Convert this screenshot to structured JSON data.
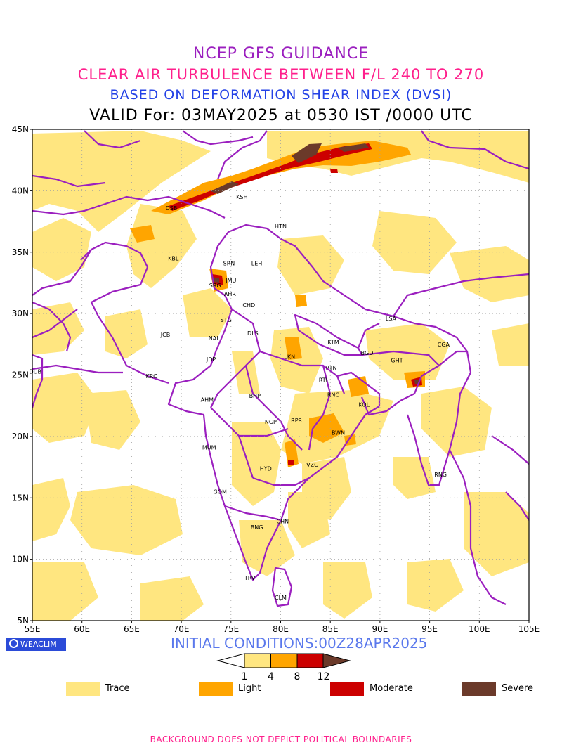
{
  "titles": {
    "line1": "NCEP GFS GUIDANCE",
    "line2": "CLEAR AIR TURBULENCE BETWEEN F/L 240 TO 270",
    "line3": "BASED ON DEFORMATION SHEAR INDEX (DVSI)",
    "line4": "VALID For: 03MAY2025 at 0530 IST /0000 UTC"
  },
  "axes": {
    "lon_labels": [
      "55E",
      "60E",
      "65E",
      "70E",
      "75E",
      "80E",
      "85E",
      "90E",
      "95E",
      "100E",
      "105E"
    ],
    "lat_labels": [
      "5N",
      "10N",
      "15N",
      "20N",
      "25N",
      "30N",
      "35N",
      "40N",
      "45N"
    ],
    "lon_range": [
      55,
      105
    ],
    "lat_range": [
      5,
      45
    ]
  },
  "cities": [
    {
      "code": "DSB",
      "lon": 69.0,
      "lat": 38.6
    },
    {
      "code": "KSH",
      "lon": 76.1,
      "lat": 39.5
    },
    {
      "code": "HTN",
      "lon": 80.0,
      "lat": 37.1
    },
    {
      "code": "KBL",
      "lon": 69.2,
      "lat": 34.5
    },
    {
      "code": "SRN",
      "lon": 74.8,
      "lat": 34.1
    },
    {
      "code": "LEH",
      "lon": 77.6,
      "lat": 34.1
    },
    {
      "code": "SRG",
      "lon": 73.4,
      "lat": 32.3
    },
    {
      "code": "JMU",
      "lon": 75.0,
      "lat": 32.7
    },
    {
      "code": "AHR",
      "lon": 74.9,
      "lat": 31.6
    },
    {
      "code": "CHD",
      "lon": 76.8,
      "lat": 30.7
    },
    {
      "code": "STG",
      "lon": 74.5,
      "lat": 29.5
    },
    {
      "code": "LSA",
      "lon": 91.1,
      "lat": 29.6
    },
    {
      "code": "JCB",
      "lon": 68.4,
      "lat": 28.3
    },
    {
      "code": "NAL",
      "lon": 73.3,
      "lat": 28.0
    },
    {
      "code": "DLS",
      "lon": 77.2,
      "lat": 28.4
    },
    {
      "code": "KTM",
      "lon": 85.3,
      "lat": 27.7
    },
    {
      "code": "CGA",
      "lon": 96.4,
      "lat": 27.5
    },
    {
      "code": "BGD",
      "lon": 88.7,
      "lat": 26.8
    },
    {
      "code": "GHT",
      "lon": 91.7,
      "lat": 26.2
    },
    {
      "code": "JDP",
      "lon": 73.0,
      "lat": 26.3
    },
    {
      "code": "LKN",
      "lon": 80.9,
      "lat": 26.5
    },
    {
      "code": "PTN",
      "lon": 85.1,
      "lat": 25.6
    },
    {
      "code": "DUB",
      "lon": 55.3,
      "lat": 25.3
    },
    {
      "code": "RTH",
      "lon": 84.4,
      "lat": 24.6
    },
    {
      "code": "KRC",
      "lon": 67.0,
      "lat": 24.9
    },
    {
      "code": "BHP",
      "lon": 77.4,
      "lat": 23.3
    },
    {
      "code": "RNC",
      "lon": 85.3,
      "lat": 23.4
    },
    {
      "code": "AHM",
      "lon": 72.6,
      "lat": 23.0
    },
    {
      "code": "KOL",
      "lon": 88.4,
      "lat": 22.6
    },
    {
      "code": "NGP",
      "lon": 79.0,
      "lat": 21.2
    },
    {
      "code": "RPR",
      "lon": 81.6,
      "lat": 21.3
    },
    {
      "code": "BWN",
      "lon": 85.8,
      "lat": 20.3
    },
    {
      "code": "MUM",
      "lon": 72.8,
      "lat": 19.1
    },
    {
      "code": "HYD",
      "lon": 78.5,
      "lat": 17.4
    },
    {
      "code": "VZG",
      "lon": 83.2,
      "lat": 17.7
    },
    {
      "code": "RNG",
      "lon": 96.1,
      "lat": 16.9
    },
    {
      "code": "GOM",
      "lon": 73.9,
      "lat": 15.5
    },
    {
      "code": "CHN",
      "lon": 80.2,
      "lat": 13.1
    },
    {
      "code": "BNG",
      "lon": 77.6,
      "lat": 12.6
    },
    {
      "code": "TRV",
      "lon": 76.9,
      "lat": 8.5
    },
    {
      "code": "CLM",
      "lon": 80.0,
      "lat": 6.9
    }
  ],
  "colorbar": {
    "thresholds": [
      "1",
      "4",
      "8",
      "12"
    ],
    "colors": [
      "#ffe680",
      "#ffa500",
      "#cc0000",
      "#6b3a2a"
    ]
  },
  "legend": [
    {
      "label": "Trace",
      "color": "#ffe680"
    },
    {
      "label": "Light",
      "color": "#ffa500"
    },
    {
      "label": "Moderate",
      "color": "#cc0000"
    },
    {
      "label": "Severe",
      "color": "#6b3a2a"
    }
  ],
  "logo": "WEACLIM",
  "initial_conditions": "INITIAL CONDITIONS:00Z28APR2025",
  "footer": "BACKGROUND DOES NOT DEPICT POLITICAL BOUNDARIES",
  "colors": {
    "trace": "#ffe680",
    "light": "#ffa500",
    "moderate": "#cc0000",
    "severe": "#6b3a2a",
    "boundary": "#9b1fbf"
  }
}
